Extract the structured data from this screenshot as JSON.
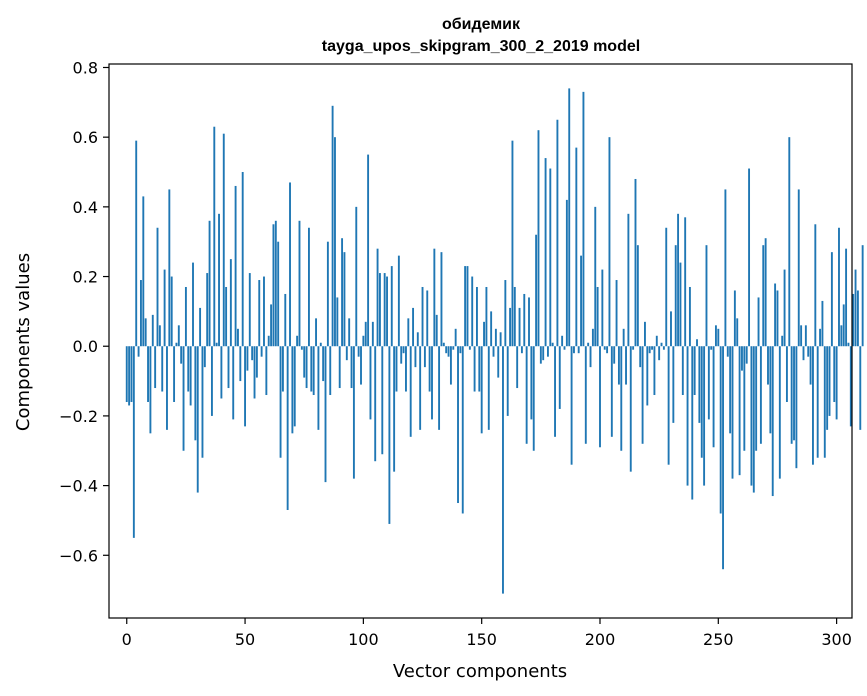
{
  "chart_data": {
    "type": "bar",
    "title": "обидемик",
    "subtitle": "tayga_upos_skipgram_300_2_2019 model",
    "xlabel": "Vector components",
    "ylabel": "Components values",
    "xlim": [
      -7.5,
      306.5
    ],
    "ylim": [
      -0.78,
      0.81
    ],
    "xticks": [
      0,
      50,
      100,
      150,
      200,
      250,
      300
    ],
    "xtick_labels": [
      "0",
      "50",
      "100",
      "150",
      "200",
      "250",
      "300"
    ],
    "yticks": [
      -0.6,
      -0.4,
      -0.2,
      0.0,
      0.2,
      0.4,
      0.6,
      0.8
    ],
    "ytick_labels": [
      "−0.6",
      "−0.4",
      "−0.2",
      "0.0",
      "0.2",
      "0.4",
      "0.6",
      "0.8"
    ],
    "bar_color": "#1f77b4",
    "grid": false,
    "values": [
      -0.16,
      -0.17,
      -0.16,
      -0.55,
      0.59,
      -0.03,
      0.19,
      0.43,
      0.08,
      -0.16,
      -0.25,
      0.09,
      -0.12,
      0.34,
      0.06,
      -0.13,
      0.22,
      -0.24,
      0.45,
      0.2,
      -0.16,
      0.01,
      0.06,
      -0.05,
      -0.3,
      0.17,
      -0.13,
      -0.17,
      0.24,
      -0.27,
      -0.42,
      0.11,
      -0.32,
      -0.06,
      0.21,
      0.36,
      -0.2,
      0.63,
      0.01,
      0.38,
      -0.15,
      0.61,
      0.17,
      -0.12,
      0.25,
      -0.21,
      0.46,
      0.05,
      -0.1,
      0.5,
      -0.23,
      -0.07,
      0.21,
      -0.04,
      -0.15,
      -0.09,
      0.19,
      -0.03,
      0.2,
      -0.14,
      0.03,
      0.12,
      0.35,
      0.36,
      0.3,
      -0.32,
      -0.13,
      0.15,
      -0.47,
      0.47,
      -0.25,
      -0.23,
      0.03,
      0.36,
      -0.01,
      -0.09,
      -0.12,
      0.34,
      -0.13,
      -0.14,
      0.08,
      -0.24,
      0.01,
      -0.1,
      -0.39,
      0.3,
      -0.14,
      0.69,
      0.6,
      0.14,
      -0.12,
      0.31,
      0.27,
      -0.04,
      0.08,
      -0.12,
      -0.38,
      0.4,
      -0.03,
      -0.11,
      0.03,
      0.07,
      0.55,
      -0.21,
      0.07,
      -0.33,
      0.28,
      0.21,
      -0.31,
      0.21,
      0.2,
      -0.51,
      0.23,
      -0.36,
      -0.13,
      0.26,
      -0.05,
      -0.02,
      -0.13,
      0.08,
      -0.26,
      0.11,
      -0.06,
      0.04,
      -0.24,
      0.17,
      -0.06,
      0.16,
      -0.13,
      -0.21,
      0.28,
      0.09,
      -0.24,
      0.27,
      0.01,
      -0.02,
      -0.03,
      -0.11,
      -0.01,
      0.05,
      -0.45,
      -0.02,
      -0.48,
      0.23,
      0.23,
      -0.01,
      0.2,
      -0.13,
      0.17,
      -0.13,
      -0.25,
      0.07,
      0.17,
      -0.24,
      0.1,
      -0.03,
      0.05,
      -0.09,
      0.04,
      -0.71,
      0.19,
      -0.2,
      0.11,
      0.59,
      0.17,
      -0.12,
      0.11,
      -0.02,
      0.15,
      -0.28,
      0.14,
      -0.21,
      -0.3,
      0.32,
      0.62,
      -0.05,
      -0.04,
      0.54,
      -0.03,
      0.51,
      0.01,
      -0.26,
      0.65,
      -0.18,
      0.03,
      -0.01,
      0.42,
      0.74,
      -0.34,
      -0.02,
      0.57,
      -0.02,
      0.26,
      0.73,
      -0.28,
      0.01,
      -0.06,
      0.05,
      0.4,
      0.17,
      -0.29,
      0.22,
      -0.01,
      -0.02,
      0.6,
      -0.26,
      -0.05,
      0.19,
      -0.11,
      -0.3,
      0.05,
      -0.11,
      0.38,
      -0.36,
      -0.01,
      0.48,
      0.29,
      -0.06,
      -0.28,
      0.07,
      -0.17,
      -0.02,
      -0.01,
      -0.14,
      0.03,
      -0.04,
      0.01,
      -0.01,
      0.34,
      -0.34,
      0.1,
      -0.22,
      0.29,
      0.38,
      0.24,
      -0.14,
      0.37,
      -0.4,
      0.17,
      -0.44,
      -0.14,
      0.02,
      -0.22,
      -0.32,
      -0.4,
      0.29,
      -0.21,
      -0.01,
      -0.29,
      0.06,
      0.05,
      -0.48,
      -0.64,
      0.45,
      -0.03,
      -0.25,
      -0.38,
      0.16,
      0.08,
      -0.37,
      -0.07,
      -0.3,
      -0.05,
      0.51,
      -0.4,
      -0.42,
      -0.3,
      0.14,
      -0.28,
      0.29,
      0.31,
      -0.11,
      -0.25,
      -0.43,
      0.18,
      0.16,
      -0.38,
      0.03,
      0.22,
      -0.16,
      0.6,
      -0.28,
      -0.27,
      -0.35,
      0.45,
      0.06,
      -0.04,
      0.06,
      -0.03,
      -0.11,
      -0.34,
      0.35,
      -0.32,
      0.05,
      0.13,
      -0.32,
      -0.24,
      -0.2,
      0.27,
      -0.16,
      -0.21,
      0.34,
      0.06,
      0.12,
      0.28,
      0.01,
      -0.23,
      0.15,
      0.22,
      0.16,
      -0.24,
      0.29
    ]
  }
}
